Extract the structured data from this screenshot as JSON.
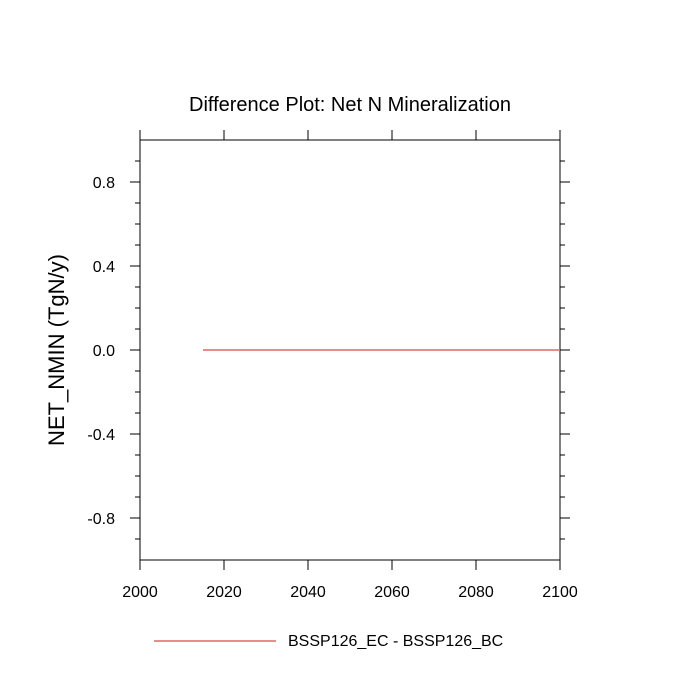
{
  "chart_data": {
    "type": "line",
    "title": "Difference Plot: Net N Mineralization",
    "xlabel": "",
    "ylabel": "NET_NMIN  (TgN/y)",
    "xlim": [
      2000,
      2100
    ],
    "ylim": [
      -1.0,
      1.0
    ],
    "x_ticks": [
      2000,
      2020,
      2040,
      2060,
      2080,
      2100
    ],
    "x_tick_labels": [
      "2000",
      "2020",
      "2040",
      "2060",
      "2080",
      "2100"
    ],
    "y_ticks": [
      -0.8,
      -0.4,
      0.0,
      0.4,
      0.8
    ],
    "y_tick_labels": [
      "-0.8",
      "-0.4",
      "0.0",
      "0.4",
      "0.8"
    ],
    "grid": false,
    "legend_position": "bottom",
    "series": [
      {
        "name": "BSSP126_EC - BSSP126_BC",
        "color": "#e06666",
        "x": [
          2015,
          2100
        ],
        "y": [
          0.0,
          0.0
        ]
      }
    ]
  }
}
